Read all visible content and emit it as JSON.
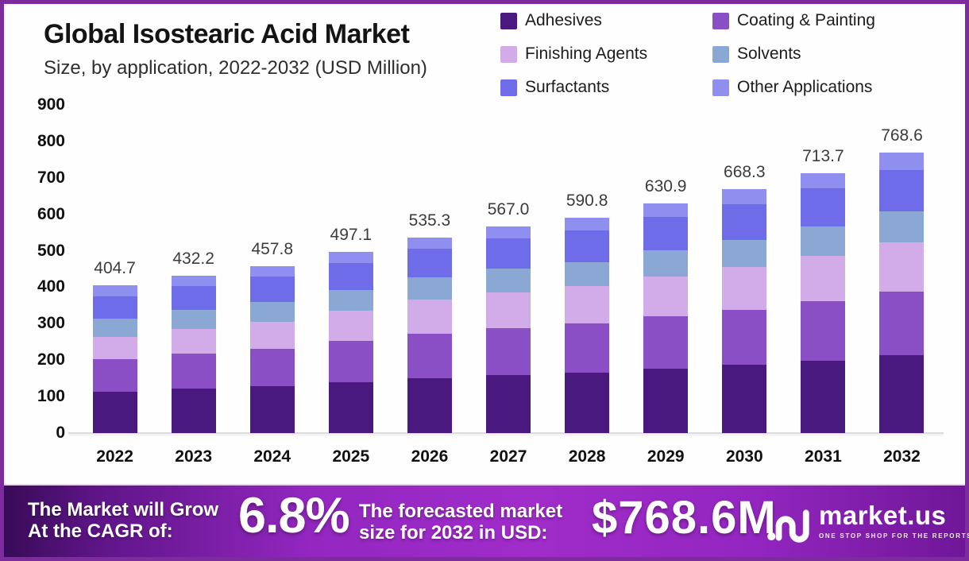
{
  "header": {
    "title": "Global Isostearic Acid Market",
    "subtitle": "Size, by application, 2022-2032 (USD Million)"
  },
  "chart_data": {
    "type": "bar",
    "stacked": true,
    "title": "Global Isostearic Acid Market",
    "subtitle": "Size, by application, 2022-2032 (USD Million)",
    "xlabel": "",
    "ylabel": "",
    "ylim": [
      0,
      900
    ],
    "ytick_step": 100,
    "grid": false,
    "legend_position": "top-right",
    "categories": [
      "2022",
      "2023",
      "2024",
      "2025",
      "2026",
      "2027",
      "2028",
      "2029",
      "2030",
      "2031",
      "2032"
    ],
    "totals": [
      "404.7",
      "432.2",
      "457.8",
      "497.1",
      "535.3",
      "567.0",
      "590.8",
      "630.9",
      "668.3",
      "713.7",
      "768.6"
    ],
    "series": [
      {
        "name": "Adhesives",
        "color": "#49197f",
        "values": [
          114.0,
          121.7,
          128.8,
          139.7,
          150.3,
          159.0,
          165.6,
          176.7,
          186.9,
          199.4,
          214.5
        ]
      },
      {
        "name": "Coating & Painting",
        "color": "#8a4ec5",
        "values": [
          89.4,
          96.3,
          102.7,
          112.4,
          122.0,
          129.0,
          134.3,
          143.2,
          151.5,
          161.6,
          173.8
        ]
      },
      {
        "name": "Finishing Agents",
        "color": "#d2abe9",
        "values": [
          60.4,
          67.1,
          73.9,
          83.3,
          93.0,
          98.7,
          103.1,
          110.3,
          117.1,
          125.3,
          135.3
        ]
      },
      {
        "name": "Solvents",
        "color": "#8ba8d5",
        "values": [
          49.4,
          51.9,
          54.0,
          57.7,
          61.0,
          64.3,
          66.6,
          70.9,
          74.7,
          79.4,
          85.1
        ]
      },
      {
        "name": "Surfactants",
        "color": "#6f6cea",
        "values": [
          62.6,
          66.0,
          69.0,
          73.9,
          78.5,
          83.2,
          86.8,
          92.8,
          98.4,
          105.2,
          113.4
        ]
      },
      {
        "name": "Other Applications",
        "color": "#8e8fee",
        "values": [
          28.9,
          29.2,
          29.4,
          30.1,
          30.5,
          32.8,
          34.4,
          37.0,
          39.7,
          42.8,
          46.5
        ]
      }
    ]
  },
  "banner": {
    "cagr_text_line1": "The Market will Grow",
    "cagr_text_line2": "At the CAGR of:",
    "cagr_value": "6.8%",
    "forecast_text_line1": "The forecasted market",
    "forecast_text_line2": "size for 2032 in USD:",
    "forecast_value": "$768.6M",
    "brand": "market.us",
    "brand_tagline": "ONE STOP SHOP FOR THE REPORTS"
  }
}
